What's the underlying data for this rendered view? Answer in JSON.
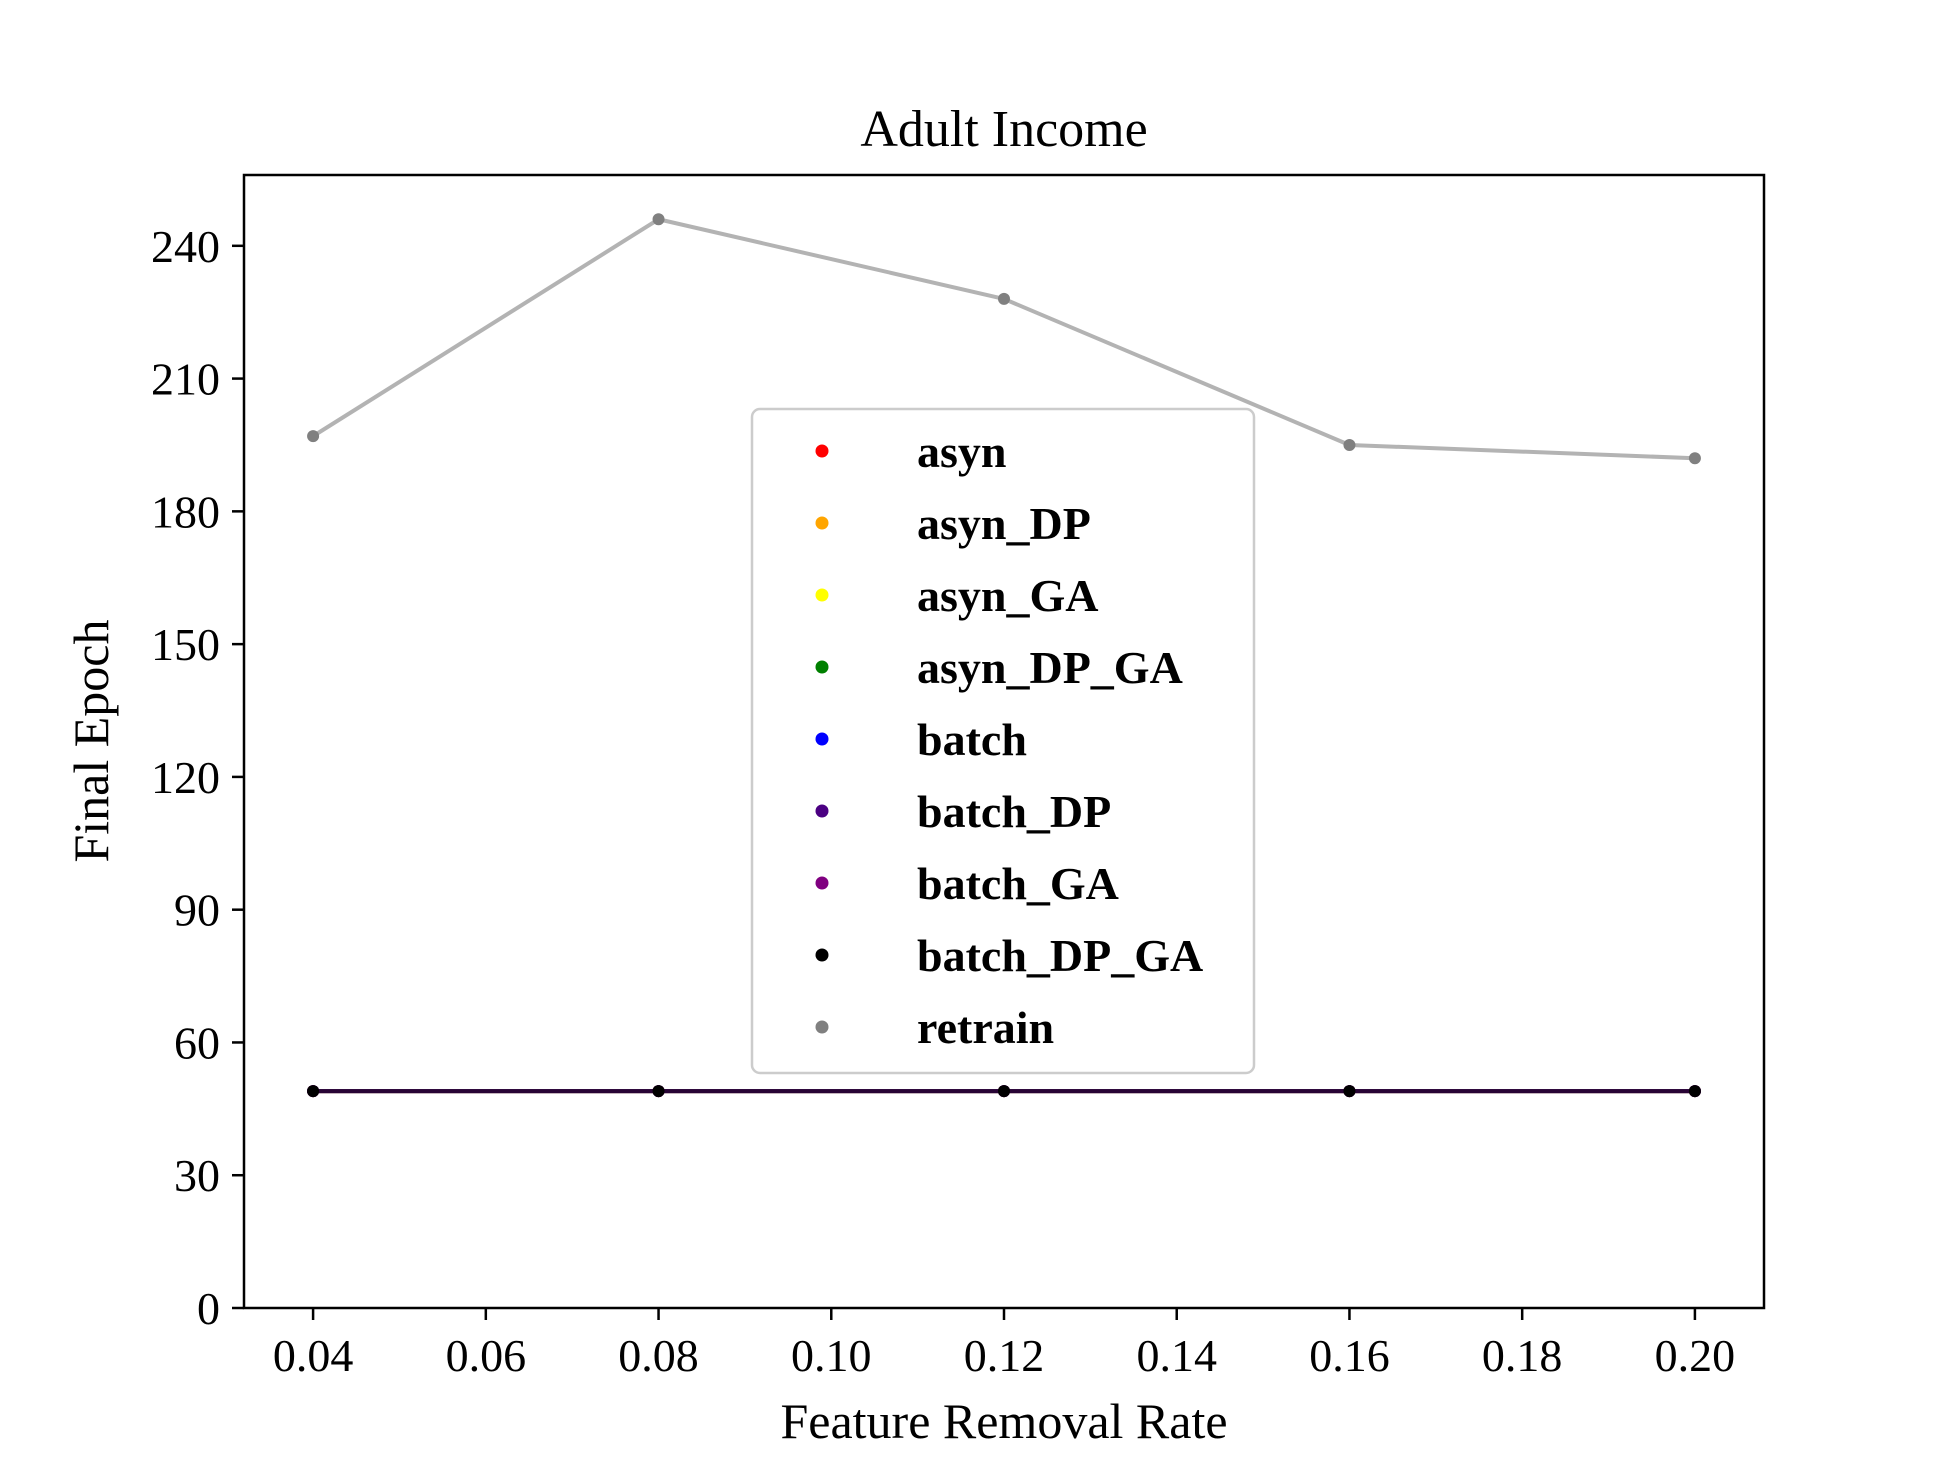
{
  "chart_data": {
    "type": "line",
    "title": "Adult Income",
    "xlabel": "Feature Removal Rate",
    "ylabel": "Final Epoch",
    "x": [
      0.04,
      0.08,
      0.12,
      0.16,
      0.2
    ],
    "xlim": [
      0.032,
      0.208
    ],
    "ylim": [
      0,
      256
    ],
    "xticks": [
      0.04,
      0.06,
      0.08,
      0.1,
      0.12,
      0.14,
      0.16,
      0.18,
      0.2
    ],
    "xtick_labels": [
      "0.04",
      "0.06",
      "0.08",
      "0.10",
      "0.12",
      "0.14",
      "0.16",
      "0.18",
      "0.20"
    ],
    "yticks": [
      0,
      30,
      60,
      90,
      120,
      150,
      180,
      210,
      240
    ],
    "ytick_labels": [
      "0",
      "30",
      "60",
      "90",
      "120",
      "150",
      "180",
      "210",
      "240"
    ],
    "grid": false,
    "legend_position": "center",
    "series": [
      {
        "name": "asyn",
        "color": "#ff0000",
        "values": [
          49,
          49,
          49,
          49,
          49
        ]
      },
      {
        "name": "asyn_DP",
        "color": "#ffa500",
        "values": [
          49,
          49,
          49,
          49,
          49
        ]
      },
      {
        "name": "asyn_GA",
        "color": "#ffff00",
        "values": [
          49,
          49,
          49,
          49,
          49
        ]
      },
      {
        "name": "asyn_DP_GA",
        "color": "#008000",
        "values": [
          49,
          49,
          49,
          49,
          49
        ]
      },
      {
        "name": "batch",
        "color": "#0000ff",
        "values": [
          49,
          49,
          49,
          49,
          49
        ]
      },
      {
        "name": "batch_DP",
        "color": "#4b0082",
        "values": [
          49,
          49,
          49,
          49,
          49
        ]
      },
      {
        "name": "batch_GA",
        "color": "#800080",
        "values": [
          49,
          49,
          49,
          49,
          49
        ]
      },
      {
        "name": "batch_DP_GA",
        "color": "#000000",
        "values": [
          49,
          49,
          49,
          49,
          49
        ]
      },
      {
        "name": "retrain",
        "color": "#808080",
        "values": [
          197,
          246,
          228,
          195,
          192
        ]
      }
    ]
  }
}
